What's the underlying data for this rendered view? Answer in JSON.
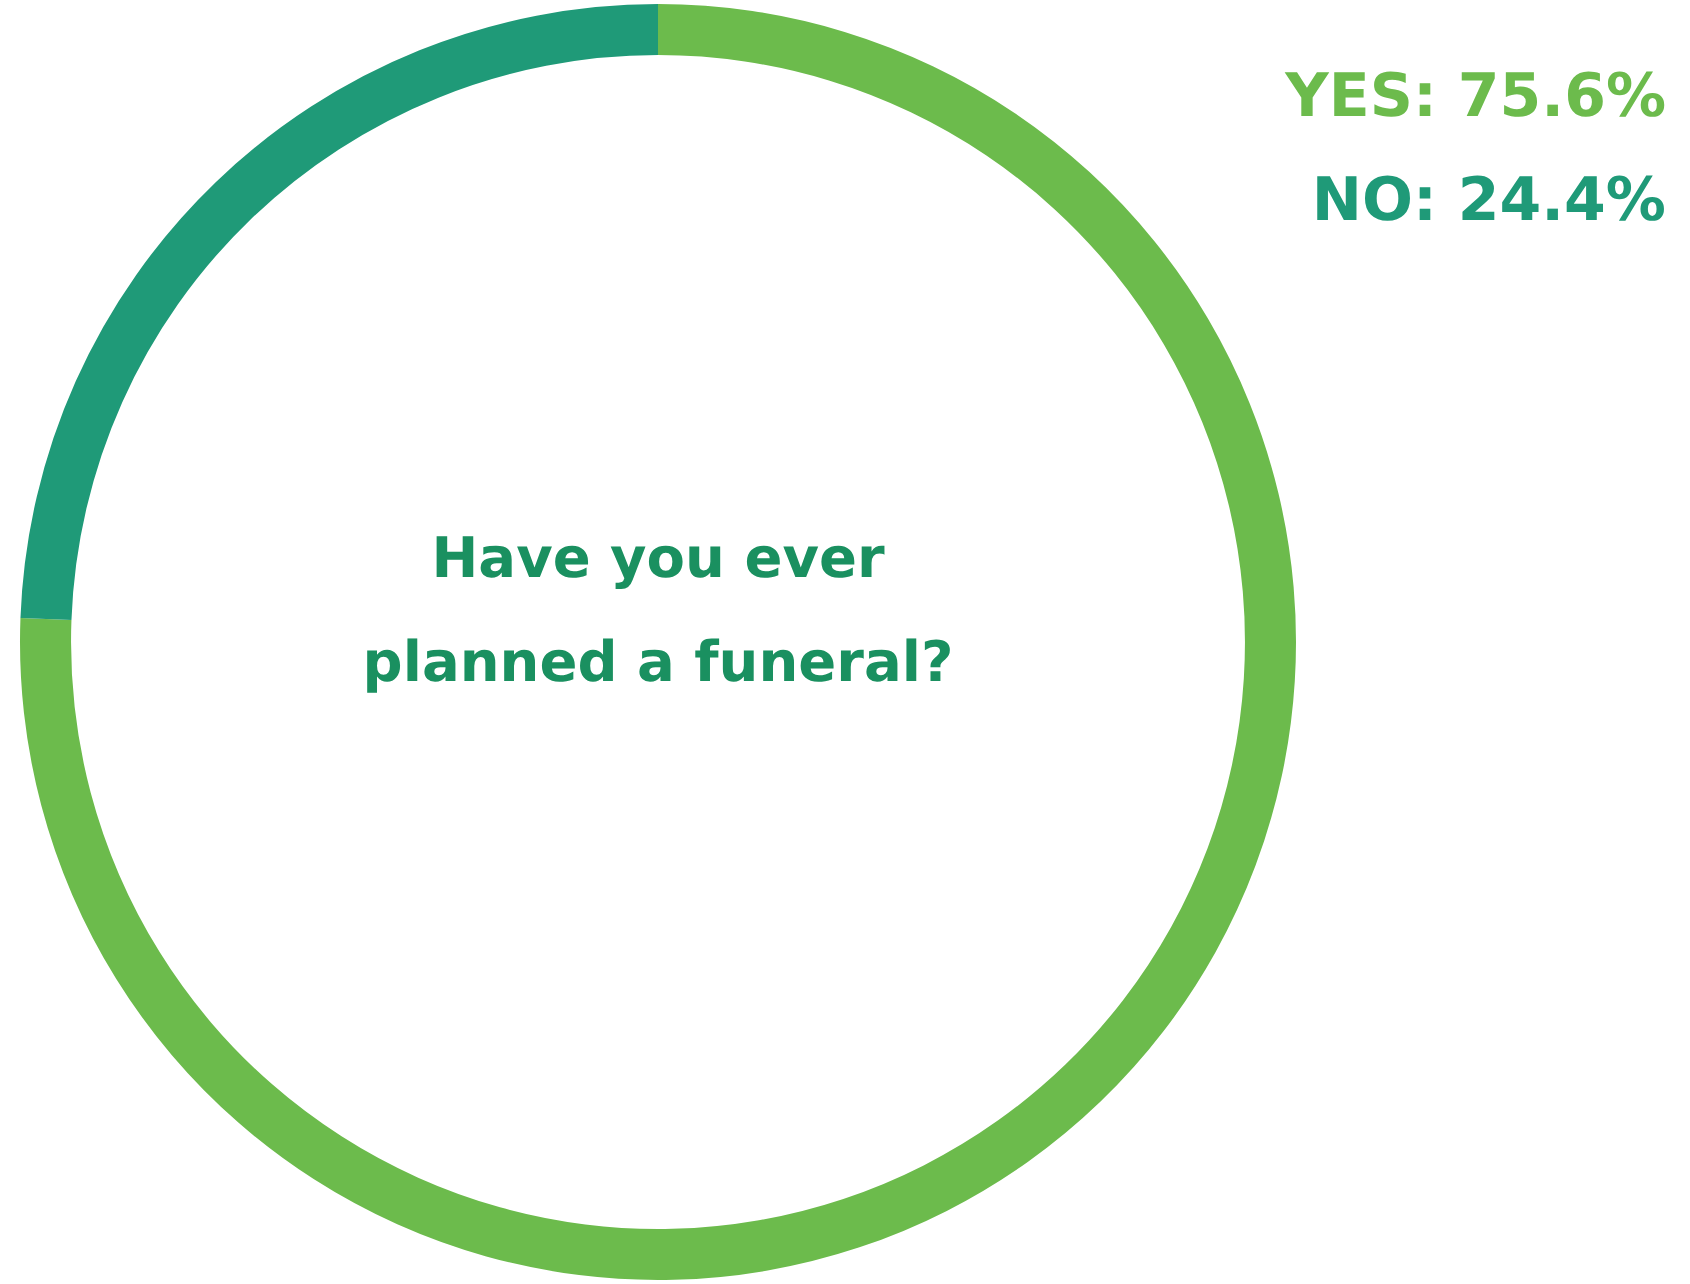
{
  "chart_data": {
    "type": "donut",
    "title": "Have you ever planned a funeral?",
    "categories": [
      null,
      null
    ],
    "values": [
      75.6,
      24.4
    ],
    "colors": [
      "#6cbb4c",
      "#1f9a78"
    ],
    "annotations": [
      "YES: 75.6%",
      "NO: 24.4%"
    ]
  }
}
